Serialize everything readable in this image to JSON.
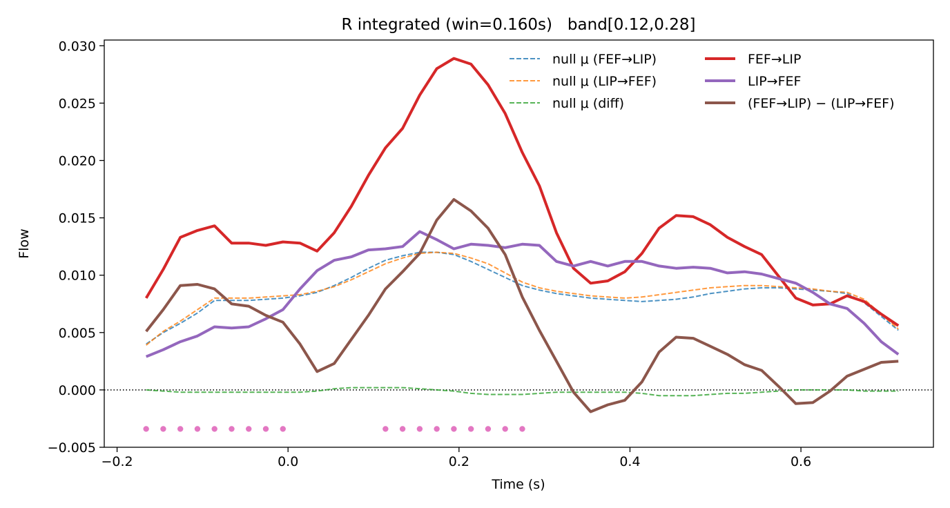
{
  "chart_data": {
    "type": "line",
    "title": "R integrated (win=0.160s)   band[0.12,0.28]",
    "xlabel": "Time (s)",
    "ylabel": "Flow",
    "xlim": [
      -0.215,
      0.755
    ],
    "ylim": [
      -0.005,
      0.0305
    ],
    "xticks": [
      -0.2,
      0.0,
      0.2,
      0.4,
      0.6
    ],
    "xtick_labels": [
      "−0.2",
      "0.0",
      "0.2",
      "0.4",
      "0.6"
    ],
    "yticks": [
      -0.005,
      0.0,
      0.005,
      0.01,
      0.015,
      0.02,
      0.025,
      0.03
    ],
    "ytick_labels": [
      "−0.005",
      "0.000",
      "0.005",
      "0.010",
      "0.015",
      "0.020",
      "0.025",
      "0.030"
    ],
    "grid": false,
    "legend_position": "top-right",
    "zero_line": {
      "y": 0.0,
      "style": "dotted",
      "color": "#000000"
    },
    "series": [
      {
        "name": "null μ (FEF→LIP)",
        "style": "dashed",
        "color": "#1f77b4",
        "width": 2,
        "x": [
          -0.166,
          -0.146,
          -0.126,
          -0.106,
          -0.086,
          -0.066,
          -0.046,
          -0.026,
          -0.006,
          0.014,
          0.034,
          0.054,
          0.074,
          0.094,
          0.114,
          0.134,
          0.154,
          0.174,
          0.194,
          0.214,
          0.234,
          0.254,
          0.274,
          0.294,
          0.314,
          0.334,
          0.354,
          0.374,
          0.394,
          0.414,
          0.434,
          0.454,
          0.474,
          0.494,
          0.514,
          0.534,
          0.554,
          0.574,
          0.594,
          0.614,
          0.634,
          0.654,
          0.674,
          0.694,
          0.714
        ],
        "y": [
          0.004,
          0.005,
          0.0058,
          0.0067,
          0.0078,
          0.0078,
          0.0078,
          0.0079,
          0.008,
          0.0082,
          0.0085,
          0.0091,
          0.0098,
          0.0106,
          0.0113,
          0.0117,
          0.012,
          0.012,
          0.0118,
          0.0112,
          0.0105,
          0.0098,
          0.0091,
          0.0087,
          0.0084,
          0.0082,
          0.008,
          0.0079,
          0.0078,
          0.0077,
          0.0078,
          0.0079,
          0.0081,
          0.0084,
          0.0086,
          0.0088,
          0.0089,
          0.0089,
          0.0088,
          0.0087,
          0.0086,
          0.0084,
          0.0076,
          0.0064,
          0.0052
        ]
      },
      {
        "name": "null μ (LIP→FEF)",
        "style": "dashed",
        "color": "#ff7f0e",
        "width": 2,
        "x": [
          -0.166,
          -0.146,
          -0.126,
          -0.106,
          -0.086,
          -0.066,
          -0.046,
          -0.026,
          -0.006,
          0.014,
          0.034,
          0.054,
          0.074,
          0.094,
          0.114,
          0.134,
          0.154,
          0.174,
          0.194,
          0.214,
          0.234,
          0.254,
          0.274,
          0.294,
          0.314,
          0.334,
          0.354,
          0.374,
          0.394,
          0.414,
          0.434,
          0.454,
          0.474,
          0.494,
          0.514,
          0.534,
          0.554,
          0.574,
          0.594,
          0.614,
          0.634,
          0.654,
          0.674,
          0.694,
          0.714
        ],
        "y": [
          0.0039,
          0.0051,
          0.006,
          0.007,
          0.008,
          0.008,
          0.008,
          0.0081,
          0.0082,
          0.0083,
          0.0086,
          0.009,
          0.0096,
          0.0103,
          0.011,
          0.0115,
          0.0119,
          0.012,
          0.0119,
          0.0115,
          0.011,
          0.0102,
          0.0094,
          0.0089,
          0.0086,
          0.0084,
          0.0082,
          0.0081,
          0.008,
          0.0081,
          0.0083,
          0.0085,
          0.0087,
          0.0089,
          0.009,
          0.0091,
          0.0091,
          0.009,
          0.0089,
          0.0088,
          0.0086,
          0.0085,
          0.0079,
          0.0066,
          0.0053
        ]
      },
      {
        "name": "null μ (diff)",
        "style": "dashed",
        "color": "#2ca02c",
        "width": 2,
        "x": [
          -0.166,
          -0.146,
          -0.126,
          -0.106,
          -0.086,
          -0.066,
          -0.046,
          -0.026,
          -0.006,
          0.014,
          0.034,
          0.054,
          0.074,
          0.094,
          0.114,
          0.134,
          0.154,
          0.174,
          0.194,
          0.214,
          0.234,
          0.254,
          0.274,
          0.294,
          0.314,
          0.334,
          0.354,
          0.374,
          0.394,
          0.414,
          0.434,
          0.454,
          0.474,
          0.494,
          0.514,
          0.534,
          0.554,
          0.574,
          0.594,
          0.614,
          0.634,
          0.654,
          0.674,
          0.694,
          0.714
        ],
        "y": [
          -0.0,
          -0.0001,
          -0.0002,
          -0.0002,
          -0.0002,
          -0.0002,
          -0.0002,
          -0.0002,
          -0.0002,
          -0.0002,
          -0.0001,
          0.0001,
          0.0002,
          0.0002,
          0.0002,
          0.0002,
          0.0001,
          0.0,
          -0.0001,
          -0.0003,
          -0.0004,
          -0.0004,
          -0.0004,
          -0.0003,
          -0.0002,
          -0.0002,
          -0.0002,
          -0.0002,
          -0.0002,
          -0.0003,
          -0.0005,
          -0.0005,
          -0.0005,
          -0.0004,
          -0.0003,
          -0.0003,
          -0.0002,
          -0.0001,
          0.0,
          0.0,
          0.0,
          -0.0,
          -0.0001,
          -0.0001,
          -0.0001
        ]
      },
      {
        "name": "FEF→LIP",
        "style": "solid",
        "color": "#d62728",
        "width": 4,
        "x": [
          -0.166,
          -0.146,
          -0.126,
          -0.106,
          -0.086,
          -0.066,
          -0.046,
          -0.026,
          -0.006,
          0.014,
          0.034,
          0.054,
          0.074,
          0.094,
          0.114,
          0.134,
          0.154,
          0.174,
          0.194,
          0.214,
          0.234,
          0.254,
          0.274,
          0.294,
          0.314,
          0.334,
          0.354,
          0.374,
          0.394,
          0.414,
          0.434,
          0.454,
          0.474,
          0.494,
          0.514,
          0.534,
          0.554,
          0.574,
          0.594,
          0.614,
          0.634,
          0.654,
          0.674,
          0.694,
          0.714
        ],
        "y": [
          0.008,
          0.0105,
          0.0133,
          0.0139,
          0.0143,
          0.0128,
          0.0128,
          0.0126,
          0.0129,
          0.0128,
          0.0121,
          0.0137,
          0.016,
          0.0187,
          0.0211,
          0.0228,
          0.0257,
          0.028,
          0.0289,
          0.0284,
          0.0266,
          0.0241,
          0.0207,
          0.0178,
          0.0137,
          0.0106,
          0.0093,
          0.0095,
          0.0103,
          0.0119,
          0.0141,
          0.0152,
          0.0151,
          0.0144,
          0.0133,
          0.0125,
          0.0118,
          0.0099,
          0.008,
          0.0074,
          0.0075,
          0.0082,
          0.0077,
          0.0066,
          0.0056
        ]
      },
      {
        "name": "LIP→FEF",
        "style": "solid",
        "color": "#9467bd",
        "width": 4,
        "x": [
          -0.166,
          -0.146,
          -0.126,
          -0.106,
          -0.086,
          -0.066,
          -0.046,
          -0.026,
          -0.006,
          0.014,
          0.034,
          0.054,
          0.074,
          0.094,
          0.114,
          0.134,
          0.154,
          0.174,
          0.194,
          0.214,
          0.234,
          0.254,
          0.274,
          0.294,
          0.314,
          0.334,
          0.354,
          0.374,
          0.394,
          0.414,
          0.434,
          0.454,
          0.474,
          0.494,
          0.514,
          0.534,
          0.554,
          0.574,
          0.594,
          0.614,
          0.634,
          0.654,
          0.674,
          0.694,
          0.714
        ],
        "y": [
          0.0029,
          0.0035,
          0.0042,
          0.0047,
          0.0055,
          0.0054,
          0.0055,
          0.0062,
          0.007,
          0.0088,
          0.0104,
          0.0113,
          0.0116,
          0.0122,
          0.0123,
          0.0125,
          0.0138,
          0.0131,
          0.0123,
          0.0127,
          0.0126,
          0.0124,
          0.0127,
          0.0126,
          0.0112,
          0.0108,
          0.0112,
          0.0108,
          0.0112,
          0.0112,
          0.0108,
          0.0106,
          0.0107,
          0.0106,
          0.0102,
          0.0103,
          0.0101,
          0.0097,
          0.0093,
          0.0085,
          0.0075,
          0.0071,
          0.0058,
          0.0042,
          0.0031
        ]
      },
      {
        "name": "(FEF→LIP) − (LIP→FEF)",
        "style": "solid",
        "color": "#8c564b",
        "width": 4,
        "x": [
          -0.166,
          -0.146,
          -0.126,
          -0.106,
          -0.086,
          -0.066,
          -0.046,
          -0.026,
          -0.006,
          0.014,
          0.034,
          0.054,
          0.074,
          0.094,
          0.114,
          0.134,
          0.154,
          0.174,
          0.194,
          0.214,
          0.234,
          0.254,
          0.274,
          0.294,
          0.314,
          0.334,
          0.354,
          0.374,
          0.394,
          0.414,
          0.434,
          0.454,
          0.474,
          0.494,
          0.514,
          0.534,
          0.554,
          0.574,
          0.594,
          0.614,
          0.634,
          0.654,
          0.674,
          0.694,
          0.714
        ],
        "y": [
          0.0051,
          0.007,
          0.0091,
          0.0092,
          0.0088,
          0.0075,
          0.0073,
          0.0065,
          0.0059,
          0.004,
          0.0016,
          0.0023,
          0.0044,
          0.0065,
          0.0088,
          0.0103,
          0.0119,
          0.0148,
          0.0166,
          0.0156,
          0.0141,
          0.0118,
          0.0081,
          0.0052,
          0.0025,
          -0.0002,
          -0.0019,
          -0.0013,
          -0.0009,
          0.0007,
          0.0033,
          0.0046,
          0.0045,
          0.0038,
          0.0031,
          0.0022,
          0.0017,
          0.0003,
          -0.0012,
          -0.0011,
          -0.0001,
          0.0012,
          0.0018,
          0.0024,
          0.0025
        ]
      }
    ],
    "significance_markers": {
      "color": "#e377c2",
      "y": -0.0034,
      "x": [
        -0.166,
        -0.146,
        -0.126,
        -0.106,
        -0.086,
        -0.066,
        -0.046,
        -0.026,
        -0.006,
        0.114,
        0.134,
        0.154,
        0.174,
        0.194,
        0.214,
        0.234,
        0.254,
        0.274
      ]
    }
  }
}
